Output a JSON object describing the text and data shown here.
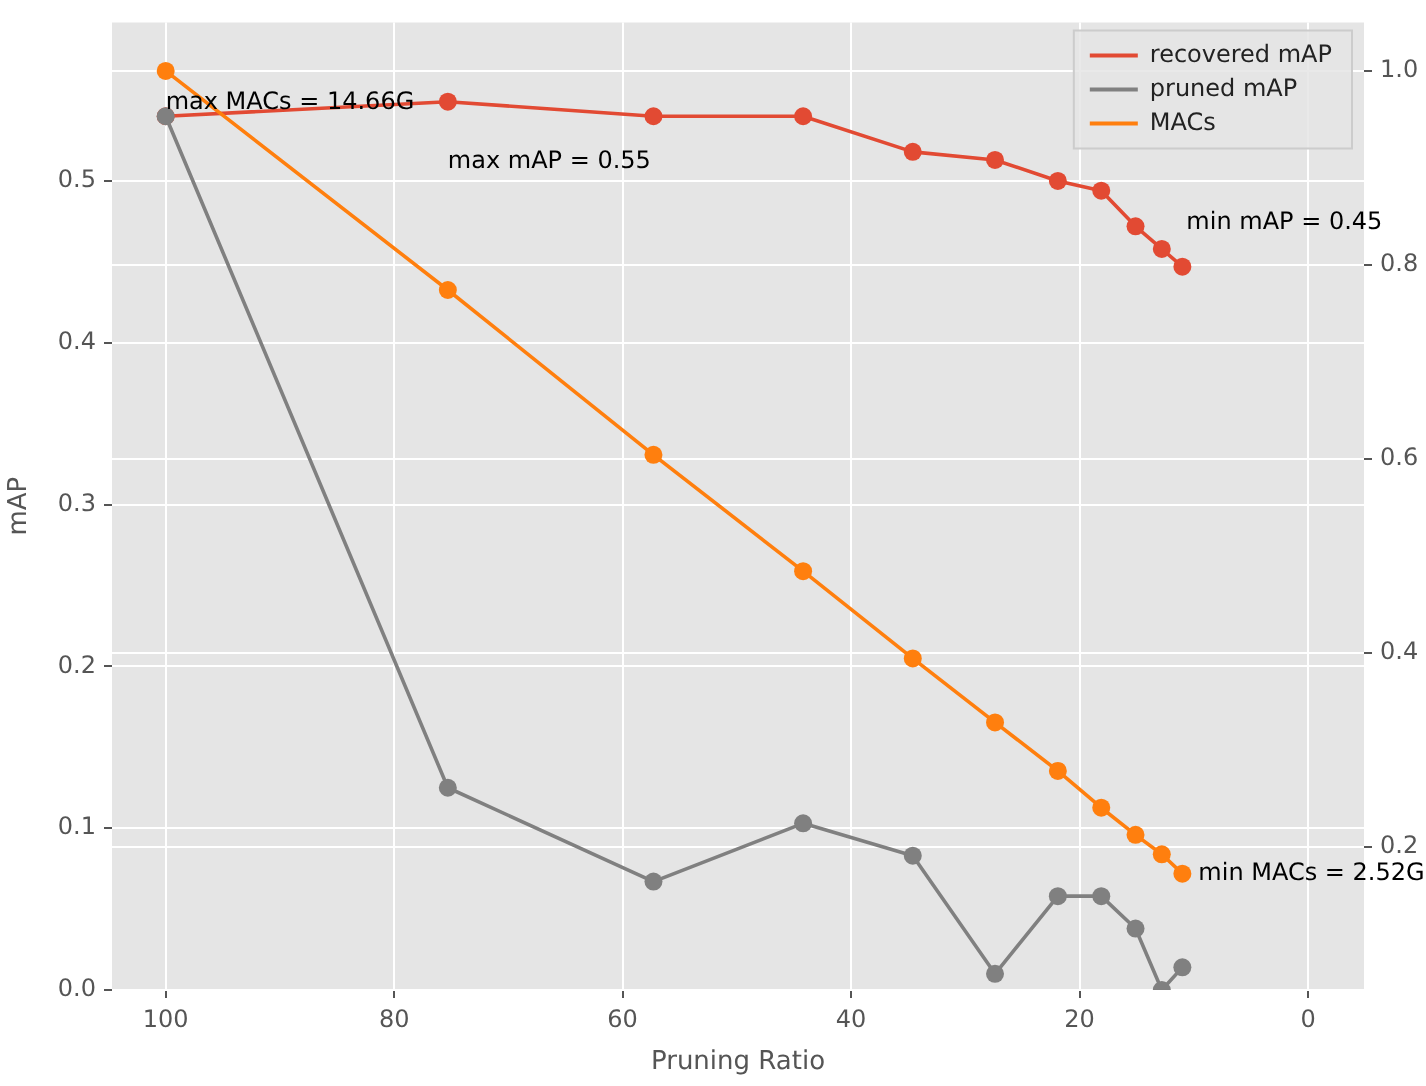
{
  "chart_data": {
    "type": "line",
    "xlabel": "Pruning Ratio",
    "ylabel": "mAP",
    "x": [
      100,
      75.3,
      57.3,
      44.2,
      34.6,
      27.4,
      21.9,
      18.1,
      15.1,
      12.8,
      11.0
    ],
    "series": [
      {
        "name": "recovered mAP",
        "color": "#e24a33",
        "values": [
          0.54,
          0.549,
          0.54,
          0.54,
          0.518,
          0.513,
          0.5,
          0.494,
          0.472,
          0.458,
          0.447
        ]
      },
      {
        "name": "pruned mAP",
        "color": "#808080",
        "values": [
          0.54,
          0.125,
          0.067,
          0.103,
          0.083,
          0.01,
          0.058,
          0.058,
          0.038,
          0.0,
          0.014
        ]
      },
      {
        "name": "MACs",
        "color": "#ff7f0e",
        "axis": "y2",
        "values": [
          1.0,
          0.774,
          0.604,
          0.484,
          0.394,
          0.328,
          0.278,
          0.24,
          0.212,
          0.192,
          0.172
        ]
      }
    ],
    "xlim": [
      104.7,
      -4.9
    ],
    "xticks": [
      100,
      80,
      60,
      40,
      20,
      0
    ],
    "ylim": [
      0,
      0.598
    ],
    "yticks": [
      {
        "value": 0,
        "label": "0.0"
      },
      0.1,
      0.2,
      0.3,
      0.4,
      0.5
    ],
    "y2lim": [
      0.052,
      1.05
    ],
    "y2ticks": [
      0.2,
      0.4,
      0.6,
      0.8,
      {
        "value": 1,
        "label": "1.0"
      }
    ],
    "annotations": [
      {
        "text": "max MACs = 14.66G",
        "x": 100,
        "y": 0.541
      },
      {
        "text": "max mAP = 0.55",
        "x": 75.3,
        "y": 0.549
      },
      {
        "text": "min mAP = 0.45",
        "x": 11.0,
        "y": 0.447
      },
      {
        "text": "min MACs = 2.52G",
        "x": 11.0,
        "y": 0.072
      }
    ],
    "grid": true,
    "legend": "top right",
    "marker": "circle",
    "line_style": "solid"
  }
}
